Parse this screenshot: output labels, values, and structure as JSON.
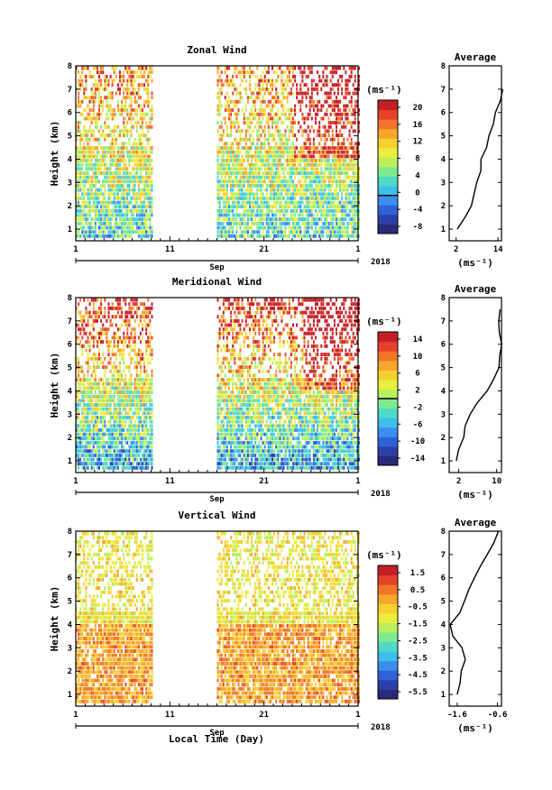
{
  "page": {
    "xlabel": "Local Time (Day)"
  },
  "chart_data": [
    {
      "type": "heatmap",
      "title": "Zonal Wind",
      "ylabel": "Height (km)",
      "ylim": [
        0.5,
        8
      ],
      "yticks": [
        "1",
        "2",
        "3",
        "4",
        "5",
        "6",
        "7",
        "8"
      ],
      "xlim": [
        1,
        31
      ],
      "xticks": [
        "1",
        "11",
        "21",
        "1"
      ],
      "month_label": "Sep",
      "year_label": "2018",
      "unit_label": "(ms⁻¹)",
      "colorbar": {
        "min": -8,
        "max": 20,
        "labels": [
          "20",
          "16",
          "12",
          "8",
          "4",
          "0",
          "-4",
          "-8"
        ],
        "zero_line": 0
      },
      "data_days": [
        [
          1,
          9.2
        ],
        [
          15.8,
          31
        ]
      ],
      "avg": {
        "title": "Average",
        "xlim": [
          0,
          15
        ],
        "xticks": [
          "2",
          "14"
        ],
        "xlabel": "(ms⁻¹)",
        "h": [
          1.0,
          1.5,
          2.0,
          2.5,
          3.0,
          3.5,
          4.0,
          4.5,
          5.0,
          5.5,
          6.0,
          6.5,
          7.0
        ],
        "v": [
          2.3,
          4.2,
          6.0,
          7.0,
          8.0,
          9.0,
          9.5,
          11.0,
          11.5,
          12.5,
          13.5,
          14.5,
          15.0
        ]
      }
    },
    {
      "type": "heatmap",
      "title": "Meridional Wind",
      "ylabel": "Height (km)",
      "ylim": [
        0.5,
        8
      ],
      "yticks": [
        "1",
        "2",
        "3",
        "4",
        "5",
        "6",
        "7",
        "8"
      ],
      "xlim": [
        1,
        31
      ],
      "xticks": [
        "1",
        "11",
        "21",
        "1"
      ],
      "month_label": "Sep",
      "year_label": "2018",
      "unit_label": "(ms⁻¹)",
      "colorbar": {
        "min": -16,
        "max": 16,
        "labels": [
          "14",
          "10",
          "6",
          "2",
          "-2",
          "-6",
          "-10",
          "-14"
        ],
        "zero_line": 0
      },
      "data_days": [
        [
          1,
          9.2
        ],
        [
          15.8,
          31
        ]
      ],
      "avg": {
        "title": "Average",
        "xlim": [
          0,
          11
        ],
        "xticks": [
          "2",
          "10"
        ],
        "xlabel": "(ms⁻¹)",
        "h": [
          1.0,
          1.5,
          2.0,
          2.5,
          3.0,
          3.5,
          4.0,
          4.5,
          5.0,
          5.5,
          6.0,
          6.5,
          7.0,
          7.5
        ],
        "v": [
          1.5,
          2.0,
          2.8,
          3.5,
          4.5,
          6.0,
          8.0,
          9.5,
          10.3,
          10.8,
          11.0,
          10.7,
          10.5,
          10.8
        ]
      }
    },
    {
      "type": "heatmap",
      "title": "Vertical Wind",
      "ylabel": "Height (km)",
      "ylim": [
        0.5,
        8
      ],
      "yticks": [
        "1",
        "2",
        "3",
        "4",
        "5",
        "6",
        "7",
        "8"
      ],
      "xlim": [
        1,
        31
      ],
      "xticks": [
        "1",
        "11",
        "21",
        "1"
      ],
      "month_label": "Sep",
      "year_label": "2018",
      "unit_label": "(ms⁻¹)",
      "colorbar": {
        "min": -7,
        "max": 2.5,
        "labels": [
          "1.5",
          "0.5",
          "-0.5",
          "-1.5",
          "-2.5",
          "-3.5",
          "-4.5",
          "-5.5"
        ],
        "zero_line": null
      },
      "data_days": [
        [
          1,
          9.2
        ],
        [
          15.8,
          31
        ]
      ],
      "avg": {
        "title": "Average",
        "xlim": [
          -1.8,
          -0.5
        ],
        "xticks": [
          "-1.6",
          "-0.6"
        ],
        "xlabel": "(ms⁻¹)",
        "h": [
          1.0,
          1.5,
          2.0,
          2.5,
          3.0,
          3.5,
          4.0,
          4.5,
          5.0,
          5.5,
          6.0,
          6.5,
          7.0,
          7.5,
          8.0
        ],
        "v": [
          -1.6,
          -1.55,
          -1.5,
          -1.4,
          -1.5,
          -1.7,
          -1.8,
          -1.55,
          -1.4,
          -1.3,
          -1.2,
          -1.0,
          -0.85,
          -0.7,
          -0.55
        ]
      }
    }
  ]
}
